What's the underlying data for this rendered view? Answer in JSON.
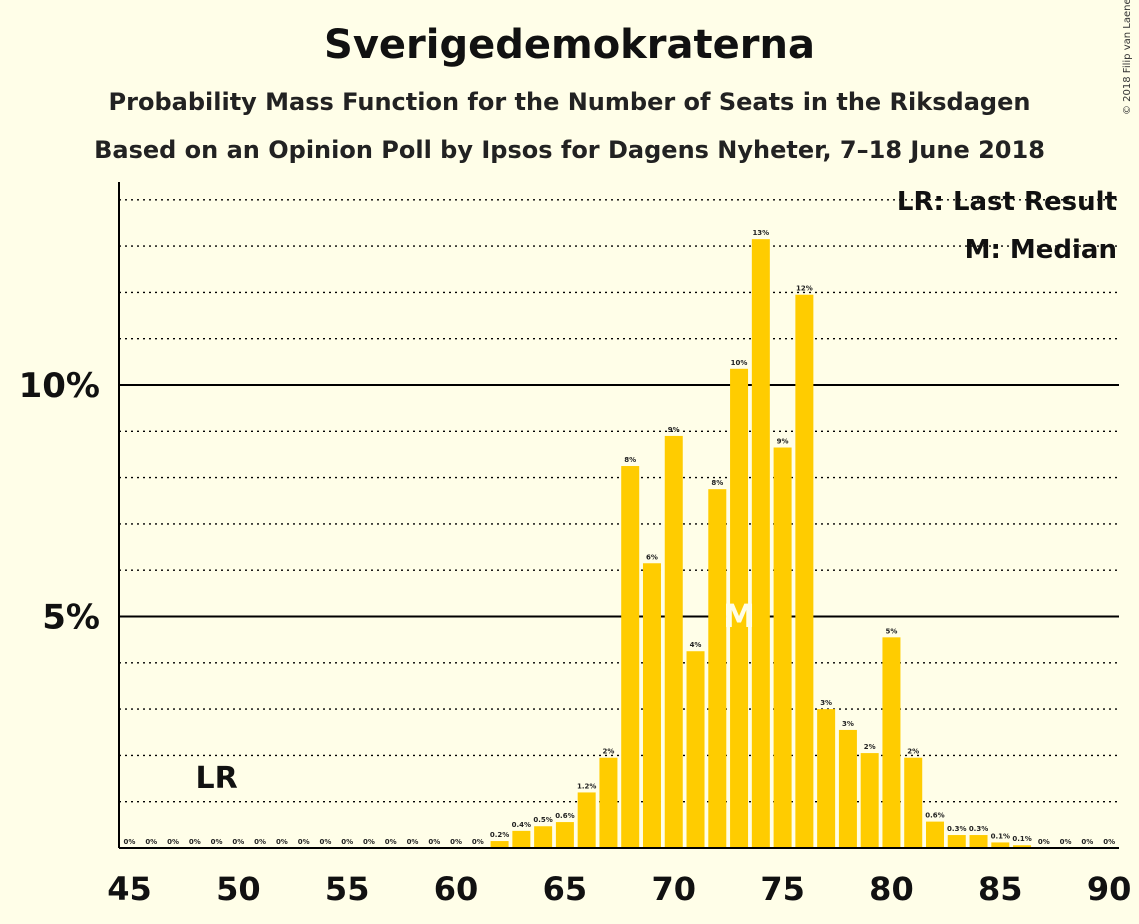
{
  "copyright": "© 2018 Filip van Laenen",
  "chart_data": {
    "type": "bar",
    "title": "Sverigedemokraterna",
    "subtitle": "Probability Mass Function for the Number of Seats in the Riksdagen",
    "subtitle2": "Based on an Opinion Poll by Ipsos for Dagens Nyheter, 7–18 June 2018",
    "x": [
      45,
      46,
      47,
      48,
      49,
      50,
      51,
      52,
      53,
      54,
      55,
      56,
      57,
      58,
      59,
      60,
      61,
      62,
      63,
      64,
      65,
      66,
      67,
      68,
      69,
      70,
      71,
      72,
      73,
      74,
      75,
      76,
      77,
      78,
      79,
      80,
      81,
      82,
      83,
      84,
      85,
      86,
      87,
      88,
      89,
      90
    ],
    "values": [
      0,
      0,
      0,
      0,
      0,
      0,
      0,
      0,
      0,
      0,
      0,
      0,
      0,
      0,
      0,
      0,
      0,
      0.15,
      0.37,
      0.47,
      0.56,
      1.2,
      1.95,
      8.25,
      6.15,
      8.9,
      4.25,
      7.75,
      10.35,
      13.15,
      8.65,
      11.95,
      3.0,
      2.55,
      2.05,
      4.55,
      1.95,
      0.57,
      0.28,
      0.28,
      0.12,
      0.06,
      0,
      0,
      0,
      0
    ],
    "data_labels": [
      "0%",
      "0%",
      "0%",
      "0%",
      "0%",
      "0%",
      "0%",
      "0%",
      "0%",
      "0%",
      "0%",
      "0%",
      "0%",
      "0%",
      "0%",
      "0%",
      "0%",
      "0.2%",
      "0.4%",
      "0.5%",
      "0.6%",
      "1.2%",
      "2%",
      "8%",
      "6%",
      "9%",
      "4%",
      "8%",
      "10%",
      "13%",
      "9%",
      "12%",
      "3%",
      "3%",
      "2%",
      "5%",
      "2%",
      "0.6%",
      "0.3%",
      "0.3%",
      "0.1%",
      "0.1%",
      "0%",
      "0%",
      "0%",
      "0%"
    ],
    "x_ticks": [
      45,
      50,
      55,
      60,
      65,
      70,
      75,
      80,
      85,
      90
    ],
    "y_ticks": [
      {
        "value": 5,
        "label": "5%"
      },
      {
        "value": 10,
        "label": "10%"
      }
    ],
    "ylim": [
      0,
      14.3
    ],
    "xlim": [
      45,
      90
    ],
    "bar_color": "#FFCC00",
    "last_result": {
      "seat": 49,
      "label": "LR"
    },
    "median": {
      "seat": 73,
      "label": "M"
    },
    "legend": {
      "position": "top-right",
      "items": [
        "LR: Last Result",
        "M: Median"
      ]
    }
  }
}
